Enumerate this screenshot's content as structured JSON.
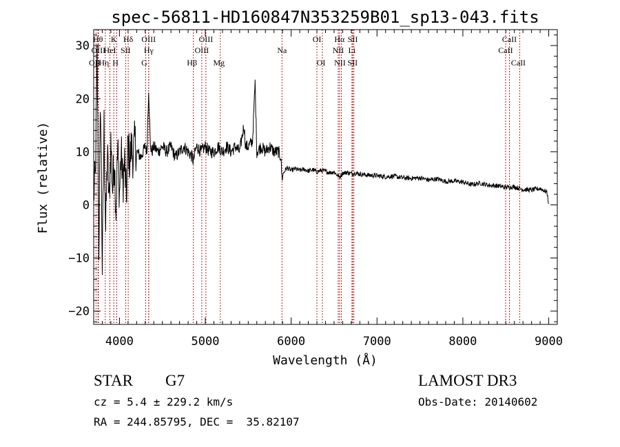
{
  "chart_data": {
    "type": "line",
    "title": "spec-56811-HD160847N353259B01_sp13-043.fits",
    "xlabel": "Wavelength (Å)",
    "ylabel": "Flux (relative)",
    "xlim": [
      3700,
      9100
    ],
    "ylim": [
      -22.5,
      33
    ],
    "x_ticks": [
      4000,
      5000,
      6000,
      7000,
      8000,
      9000
    ],
    "y_ticks": [
      -20,
      -10,
      0,
      10,
      20,
      30
    ],
    "grid": false,
    "series": [
      {
        "name": "spectrum",
        "x": [
          3700,
          3720,
          3740,
          3760,
          3780,
          3800,
          3820,
          3840,
          3860,
          3880,
          3900,
          3920,
          3940,
          3960,
          3980,
          4000,
          4020,
          4040,
          4060,
          4080,
          4100,
          4120,
          4140,
          4160,
          4180,
          4200,
          4250,
          4300,
          4320,
          4340,
          4360,
          4380,
          4400,
          4450,
          4500,
          4550,
          4600,
          4650,
          4700,
          4750,
          4800,
          4850,
          4861,
          4880,
          4900,
          4950,
          5000,
          5050,
          5100,
          5150,
          5200,
          5250,
          5300,
          5350,
          5400,
          5450,
          5470,
          5500,
          5550,
          5580,
          5600,
          5650,
          5700,
          5750,
          5800,
          5850,
          5880,
          5893,
          5910,
          5950,
          6000,
          6050,
          6100,
          6150,
          6200,
          6250,
          6300,
          6350,
          6400,
          6450,
          6500,
          6563,
          6600,
          6650,
          6700,
          6750,
          6800,
          6900,
          7000,
          7100,
          7200,
          7300,
          7400,
          7500,
          7600,
          7700,
          7800,
          7900,
          8000,
          8100,
          8200,
          8300,
          8400,
          8500,
          8600,
          8700,
          8800,
          8900,
          8980,
          9000
        ],
        "y": [
          2,
          5,
          28,
          -8,
          20,
          -12,
          15,
          -5,
          10,
          0,
          12,
          3,
          9,
          -1,
          11,
          2,
          10,
          4,
          8,
          1,
          12,
          8,
          11,
          9,
          12,
          10,
          9,
          11,
          10,
          22,
          11,
          10,
          11,
          10,
          11,
          10,
          11,
          9,
          10,
          11,
          10,
          9,
          8,
          10,
          11,
          10,
          11,
          10,
          10,
          11,
          10,
          11,
          10,
          11,
          10,
          15,
          11,
          11,
          12,
          23,
          10,
          11,
          10,
          11,
          10,
          10,
          9,
          5,
          6,
          7,
          6.5,
          6.8,
          6.5,
          6.7,
          6.4,
          6.6,
          6.2,
          6.5,
          6.3,
          6.1,
          6.2,
          5.2,
          6,
          6.1,
          5.9,
          6,
          5.8,
          5.6,
          5.5,
          5.3,
          5.4,
          5.1,
          5,
          5.1,
          4.7,
          4.9,
          4.4,
          4.5,
          4.3,
          3.8,
          4.1,
          3.7,
          3.6,
          3.3,
          3.4,
          2.9,
          2.8,
          3.1,
          2.4,
          0.2
        ]
      }
    ],
    "lines": [
      {
        "label": "OII",
        "x": 3727,
        "row": 3
      },
      {
        "label": "Hθ",
        "x": 3750,
        "row": 1
      },
      {
        "label": "OIII",
        "x": 3755,
        "row": 2
      },
      {
        "label": "Hη",
        "x": 3835,
        "row": 3
      },
      {
        "label": "HeI",
        "x": 3889,
        "row": 2
      },
      {
        "label": "K",
        "x": 3934,
        "row": 1
      },
      {
        "label": "H",
        "x": 3969,
        "row": 3
      },
      {
        "label": "SII",
        "x": 4072,
        "row": 2
      },
      {
        "label": "Hδ",
        "x": 4102,
        "row": 1
      },
      {
        "label": "G",
        "x": 4305,
        "row": 3
      },
      {
        "label": "OIII",
        "x": 4340,
        "row": 1
      },
      {
        "label": "Hγ",
        "x": 4341,
        "row": 2
      },
      {
        "label": "Hβ",
        "x": 4861,
        "row": 3
      },
      {
        "label": "OIII",
        "x": 4959,
        "row": 2
      },
      {
        "label": "OIII",
        "x": 5007,
        "row": 1
      },
      {
        "label": "Mg",
        "x": 5175,
        "row": 3
      },
      {
        "label": "Na",
        "x": 5893,
        "row": 2
      },
      {
        "label": "OI",
        "x": 6300,
        "row": 1
      },
      {
        "label": "OI",
        "x": 6364,
        "row": 3
      },
      {
        "label": "NII",
        "x": 6548,
        "row": 2
      },
      {
        "label": "Hα",
        "x": 6563,
        "row": 1
      },
      {
        "label": "NII",
        "x": 6584,
        "row": 3
      },
      {
        "label": "SII",
        "x": 6717,
        "row": 1
      },
      {
        "label": "Li",
        "x": 6708,
        "row": 2
      },
      {
        "label": "SII",
        "x": 6731,
        "row": 3
      },
      {
        "label": "CaII",
        "x": 8498,
        "row": 2
      },
      {
        "label": "CaII",
        "x": 8542,
        "row": 1
      },
      {
        "label": "CaII",
        "x": 8662,
        "row": 3
      }
    ]
  },
  "info": {
    "object_class": "STAR",
    "subclass": "G7",
    "survey": "LAMOST DR3",
    "redshift_text": "cz = 5.4 ± 229.2 km/s",
    "obs_date_text": "Obs-Date: 20140602",
    "coords_text": "RA = 244.85795, DEC =  35.82107"
  }
}
